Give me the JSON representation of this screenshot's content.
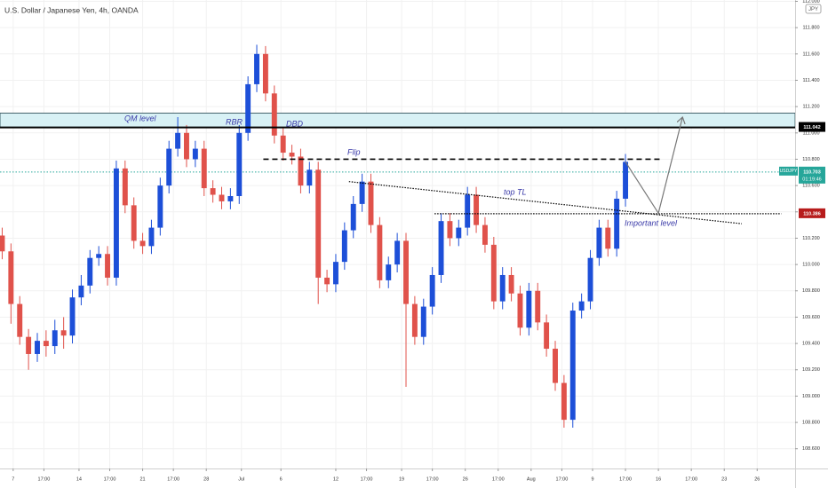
{
  "chart_data": {
    "type": "candlestick",
    "title": "U.S. Dollar / Japanese Yen, 4h, OANDA",
    "currency_tag": "JPY",
    "up_color": "#1d4fd8",
    "down_color": "#e0524b",
    "x": [
      1,
      5,
      9,
      13,
      17,
      21,
      25,
      29,
      33,
      37,
      41,
      45,
      49,
      53,
      57,
      61,
      65,
      69,
      73,
      77,
      81,
      85,
      89,
      93,
      97,
      101,
      105,
      109,
      113,
      117,
      121,
      125,
      129,
      133,
      137,
      141,
      145,
      149,
      153,
      157,
      161,
      165,
      169,
      173,
      177,
      181,
      185,
      189,
      193,
      197,
      201,
      205,
      209,
      213,
      217,
      221,
      225,
      229,
      233,
      237,
      241,
      245,
      249,
      253,
      257,
      261,
      265,
      269,
      273,
      277,
      281,
      285
    ],
    "open": [
      110.22,
      110.1,
      109.7,
      109.45,
      109.32,
      109.42,
      109.38,
      109.5,
      109.46,
      109.75,
      109.84,
      110.05,
      110.08,
      109.9,
      110.73,
      110.45,
      110.18,
      110.14,
      110.28,
      110.6,
      110.88,
      111.0,
      110.8,
      110.88,
      110.58,
      110.53,
      110.48,
      110.52,
      111.0,
      111.37,
      111.6,
      111.3,
      110.98,
      110.85,
      110.82,
      110.6,
      110.72,
      109.9,
      109.85,
      110.02,
      110.26,
      110.46,
      110.63,
      110.3,
      109.88,
      110.0,
      110.18,
      109.7,
      109.45,
      109.68,
      109.92,
      110.33,
      110.2,
      110.28,
      110.53,
      110.3,
      110.15,
      109.72,
      109.92,
      109.78,
      109.52,
      109.8,
      109.56,
      109.36,
      109.1,
      108.82,
      109.65,
      109.72,
      110.05,
      110.28,
      110.12,
      110.5
    ],
    "high": [
      110.28,
      110.16,
      109.76,
      109.51,
      109.48,
      109.5,
      109.58,
      109.6,
      109.81,
      109.92,
      110.11,
      110.14,
      110.14,
      110.79,
      110.79,
      110.51,
      110.24,
      110.34,
      110.66,
      110.94,
      111.12,
      111.06,
      110.94,
      110.94,
      110.64,
      110.59,
      110.58,
      111.06,
      111.43,
      111.67,
      111.66,
      111.36,
      111.04,
      110.91,
      110.88,
      110.78,
      110.78,
      109.96,
      110.08,
      110.32,
      110.52,
      110.69,
      110.69,
      110.36,
      110.06,
      110.24,
      110.24,
      109.76,
      109.74,
      109.98,
      110.39,
      110.39,
      110.34,
      110.59,
      110.59,
      110.36,
      110.21,
      109.98,
      109.98,
      109.84,
      109.86,
      109.86,
      109.62,
      109.42,
      109.16,
      109.71,
      109.78,
      110.11,
      110.34,
      110.34,
      110.56,
      110.84
    ],
    "low": [
      110.04,
      109.55,
      109.39,
      109.2,
      109.26,
      109.3,
      109.32,
      109.36,
      109.4,
      109.69,
      109.78,
      109.99,
      109.84,
      109.84,
      110.39,
      110.12,
      110.08,
      110.08,
      110.22,
      110.54,
      110.82,
      110.74,
      110.74,
      110.52,
      110.47,
      110.42,
      110.42,
      110.46,
      110.94,
      111.31,
      111.24,
      110.92,
      110.79,
      110.76,
      110.54,
      110.54,
      109.7,
      109.79,
      109.79,
      109.96,
      110.2,
      110.4,
      110.24,
      109.82,
      109.82,
      109.94,
      109.07,
      109.39,
      109.39,
      109.62,
      109.86,
      110.14,
      110.14,
      110.22,
      110.24,
      110.09,
      109.66,
      109.66,
      109.72,
      109.46,
      109.46,
      109.5,
      109.3,
      109.04,
      108.76,
      108.76,
      109.59,
      109.66,
      109.99,
      110.06,
      110.06,
      110.44
    ],
    "close": [
      110.1,
      109.7,
      109.45,
      109.32,
      109.42,
      109.38,
      109.5,
      109.46,
      109.75,
      109.84,
      110.05,
      110.08,
      109.9,
      110.73,
      110.45,
      110.18,
      110.14,
      110.28,
      110.6,
      110.88,
      111.0,
      110.8,
      110.88,
      110.58,
      110.53,
      110.48,
      110.52,
      111.0,
      111.37,
      111.6,
      111.3,
      110.98,
      110.85,
      110.82,
      110.6,
      110.72,
      109.9,
      109.85,
      110.02,
      110.26,
      110.46,
      110.63,
      110.3,
      109.88,
      110.0,
      110.18,
      109.7,
      109.45,
      109.68,
      109.92,
      110.33,
      110.2,
      110.28,
      110.53,
      110.3,
      110.15,
      109.72,
      109.92,
      109.78,
      109.52,
      109.8,
      109.56,
      109.36,
      109.1,
      108.82,
      109.65,
      109.72,
      110.05,
      110.28,
      110.12,
      110.5,
      110.78
    ],
    "xlim": [
      0,
      362.3
    ],
    "ylim": [
      108.45,
      112.01
    ],
    "xticks": [
      {
        "value": 6,
        "label": "7"
      },
      {
        "value": 20,
        "label": "17:00"
      },
      {
        "value": 36,
        "label": "14"
      },
      {
        "value": 50,
        "label": "17:00"
      },
      {
        "value": 65,
        "label": "21"
      },
      {
        "value": 79,
        "label": "17:00"
      },
      {
        "value": 94,
        "label": "28"
      },
      {
        "value": 110,
        "label": "Jul"
      },
      {
        "value": 128,
        "label": "6"
      },
      {
        "value": 153,
        "label": "12"
      },
      {
        "value": 167,
        "label": "17:00"
      },
      {
        "value": 183,
        "label": "19"
      },
      {
        "value": 197,
        "label": "17:00"
      },
      {
        "value": 212,
        "label": "26"
      },
      {
        "value": 227,
        "label": "17:00"
      },
      {
        "value": 242,
        "label": "Aug"
      },
      {
        "value": 256,
        "label": "17:00"
      },
      {
        "value": 270,
        "label": "9"
      },
      {
        "value": 285,
        "label": "17:00"
      },
      {
        "value": 300,
        "label": "16"
      },
      {
        "value": 315,
        "label": "17:00"
      },
      {
        "value": 330,
        "label": "23"
      },
      {
        "value": 345,
        "label": "26"
      }
    ],
    "yticks": [
      {
        "value": 108.6,
        "label": "108.600"
      },
      {
        "value": 108.8,
        "label": "108.800"
      },
      {
        "value": 109,
        "label": "109.000"
      },
      {
        "value": 109.2,
        "label": "109.200"
      },
      {
        "value": 109.4,
        "label": "109.400"
      },
      {
        "value": 109.6,
        "label": "109.600"
      },
      {
        "value": 109.8,
        "label": "109.800"
      },
      {
        "value": 110,
        "label": "110.000"
      },
      {
        "value": 110.2,
        "label": "110.200"
      },
      {
        "value": 110.4,
        "label": "110.400"
      },
      {
        "value": 110.6,
        "label": "110.600"
      },
      {
        "value": 110.8,
        "label": "110.800"
      },
      {
        "value": 111,
        "label": "111.000"
      },
      {
        "value": 111.2,
        "label": "111.200"
      },
      {
        "value": 111.4,
        "label": "111.400"
      },
      {
        "value": 111.6,
        "label": "111.600"
      },
      {
        "value": 111.8,
        "label": "111.800"
      },
      {
        "value": 112,
        "label": "112.000"
      }
    ],
    "zone": {
      "low": 111.04,
      "high": 111.15,
      "color": "#d8f1f5"
    },
    "lines": [
      {
        "style": "solid",
        "color": "#000000",
        "x": [
          0,
          362.3
        ],
        "y": [
          111.042,
          111.042
        ]
      },
      {
        "style": "dashed",
        "color": "#000000",
        "x": [
          120,
          302
        ],
        "y": [
          110.8,
          110.8
        ]
      },
      {
        "style": "dotted",
        "color": "#000000",
        "x": [
          198,
          356
        ],
        "y": [
          110.386,
          110.386
        ]
      },
      {
        "style": "dotted",
        "color": "#000000",
        "x": [
          159,
          338
        ],
        "y": [
          110.63,
          110.31
        ]
      },
      {
        "style": "arrow",
        "color": "#777777",
        "x": [
          285,
          300,
          311
        ],
        "y": [
          110.78,
          110.39,
          111.12
        ]
      }
    ],
    "price_markers": [
      {
        "value": 111.042,
        "label": "111.042",
        "color": "#000000"
      },
      {
        "value": 110.703,
        "label": "110.703",
        "color": "#26a69a",
        "symbol": "USDJPY",
        "countdown": "01:19:46"
      },
      {
        "value": 110.386,
        "label": "110.386",
        "color": "#b71c1c"
      }
    ],
    "annotations": [
      "QM level",
      "RBR",
      "DBD",
      "Flip",
      "top TL",
      "Important level"
    ]
  }
}
